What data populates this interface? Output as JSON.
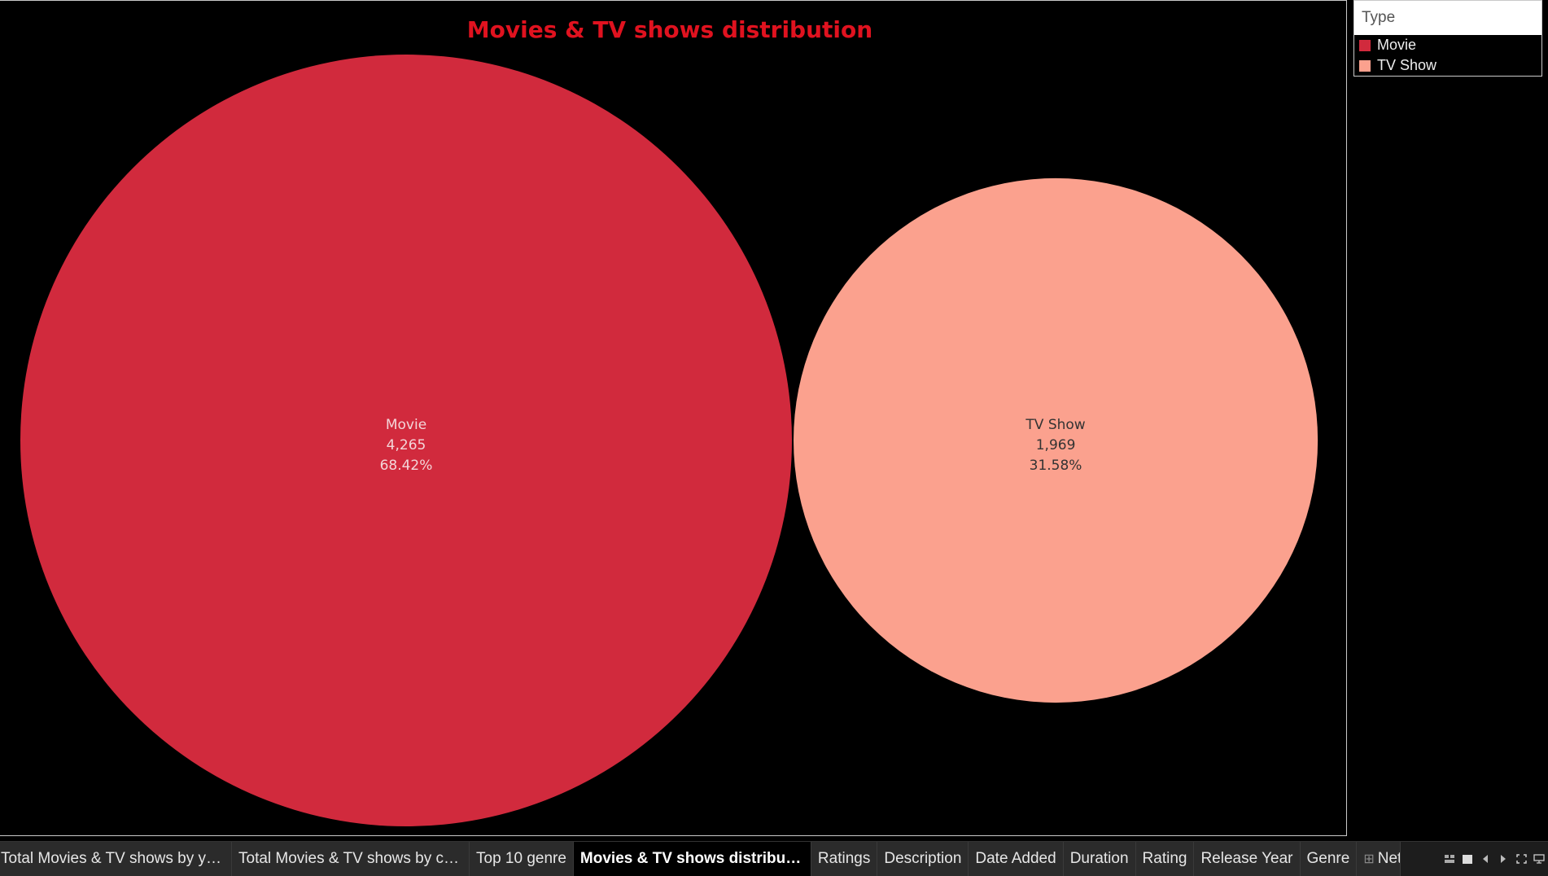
{
  "chart": {
    "title": "Movies & TV shows distribution"
  },
  "chart_data": {
    "type": "bubble",
    "title": "Movies & TV shows distribution",
    "points": [
      {
        "label": "Movie",
        "count": 4265,
        "count_label": "4,265",
        "percent_label": "68.42%",
        "color": "#d12a3d"
      },
      {
        "label": "TV Show",
        "count": 1969,
        "count_label": "1,969",
        "percent_label": "31.58%",
        "color": "#fba18e"
      }
    ],
    "legend": {
      "title": "Type",
      "placement": "top-right"
    }
  },
  "legend": {
    "title": "Type",
    "items": [
      {
        "label": "Movie",
        "color": "#d12a3d"
      },
      {
        "label": "TV Show",
        "color": "#fba18e"
      }
    ]
  },
  "tabs": [
    {
      "label": "Total Movies & TV shows by years",
      "active": false
    },
    {
      "label": "Total Movies & TV shows by cou...",
      "active": false
    },
    {
      "label": "Top 10 genre",
      "active": false
    },
    {
      "label": "Movies & TV shows distribution",
      "active": true
    },
    {
      "label": "Ratings",
      "active": false
    },
    {
      "label": "Description",
      "active": false
    },
    {
      "label": "Date Added",
      "active": false
    },
    {
      "label": "Duration",
      "active": false
    },
    {
      "label": "Rating",
      "active": false
    },
    {
      "label": "Release Year",
      "active": false
    },
    {
      "label": "Genre",
      "active": false
    },
    {
      "label": "Net",
      "active": false
    }
  ],
  "controls": [
    {
      "name": "show-sheet-sorter-icon"
    },
    {
      "name": "show-filmstrip-icon"
    },
    {
      "name": "scroll-left-icon"
    },
    {
      "name": "scroll-right-icon"
    },
    {
      "name": "fit-screen-icon"
    },
    {
      "name": "present-mode-icon"
    }
  ]
}
